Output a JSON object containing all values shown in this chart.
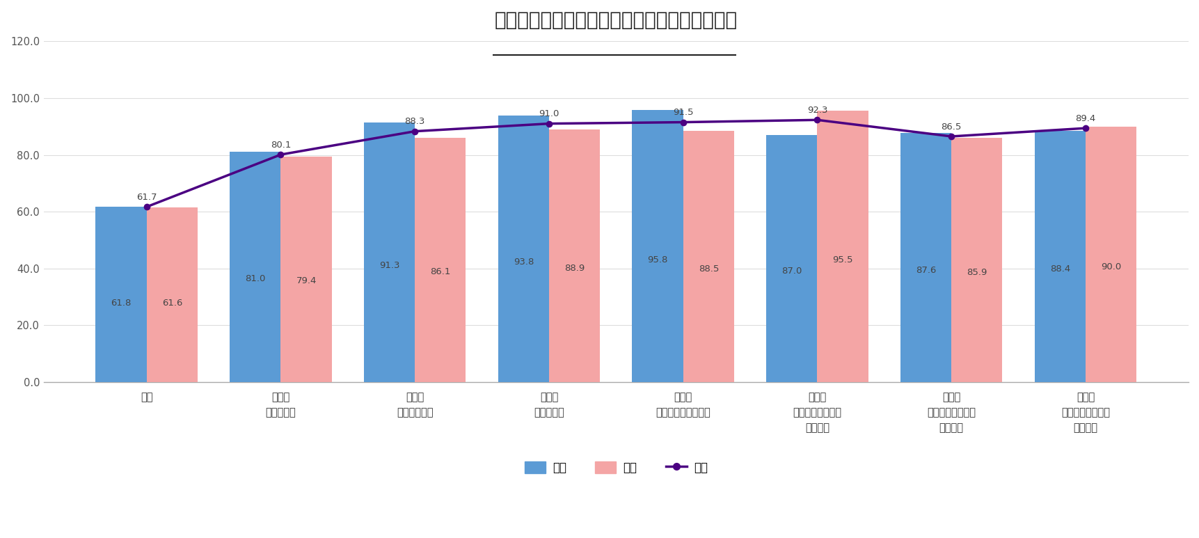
{
  "title": "ライフステージ別　生命保険の加入状況（％）",
  "categories": [
    "未婚",
    "既婚・\n子どもなし",
    "既婚・\n末子未就学児",
    "既婚・\n末子小学生",
    "既婚・\n末子中学生、高校生",
    "既婚・\n末子短大・大学・\n大学院生",
    "既婚・\n子どもすべて卒業\n（未婚）",
    "既婚・\n子どもすべて卒業\n（既婚）"
  ],
  "male": [
    61.8,
    81.0,
    91.3,
    93.8,
    95.8,
    87.0,
    87.6,
    88.4
  ],
  "female": [
    61.6,
    79.4,
    86.1,
    88.9,
    88.5,
    95.5,
    85.9,
    90.0
  ],
  "total": [
    61.7,
    80.1,
    88.3,
    91.0,
    91.5,
    92.3,
    86.5,
    89.4
  ],
  "male_color": "#5B9BD5",
  "female_color": "#F4A5A5",
  "total_color": "#4B0082",
  "bar_width": 0.38,
  "ylim": [
    0,
    120
  ],
  "yticks": [
    0.0,
    20.0,
    40.0,
    60.0,
    80.0,
    100.0,
    120.0
  ],
  "background_color": "#FFFFFF",
  "grid_color": "#DDDDDD",
  "title_fontsize": 20,
  "tick_fontsize": 10.5,
  "label_fontsize": 9.5,
  "legend_fontsize": 12,
  "label_color": "#444444",
  "spine_color": "#AAAAAA"
}
